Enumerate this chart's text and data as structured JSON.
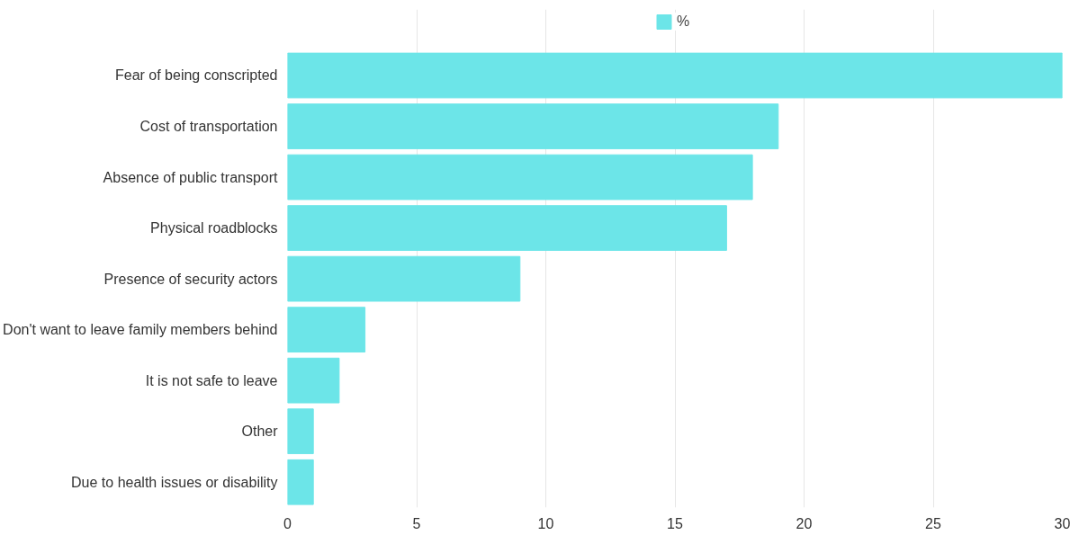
{
  "chart_data": {
    "type": "bar",
    "orientation": "horizontal",
    "categories": [
      "Fear of being conscripted",
      "Cost of transportation",
      "Absence of public transport",
      "Physical roadblocks",
      "Presence of security actors",
      "Don't want to leave family members behind",
      "It is not safe to leave",
      "Other",
      "Due to health issues or disability"
    ],
    "series": [
      {
        "name": "%",
        "color": "#6ce5e8",
        "values": [
          30,
          19,
          18,
          17,
          9,
          3,
          2,
          1,
          1
        ]
      }
    ],
    "xlim": [
      0,
      30
    ],
    "xticks": [
      0,
      5,
      10,
      15,
      20,
      25,
      30
    ],
    "grid": "x",
    "legend": "top"
  }
}
